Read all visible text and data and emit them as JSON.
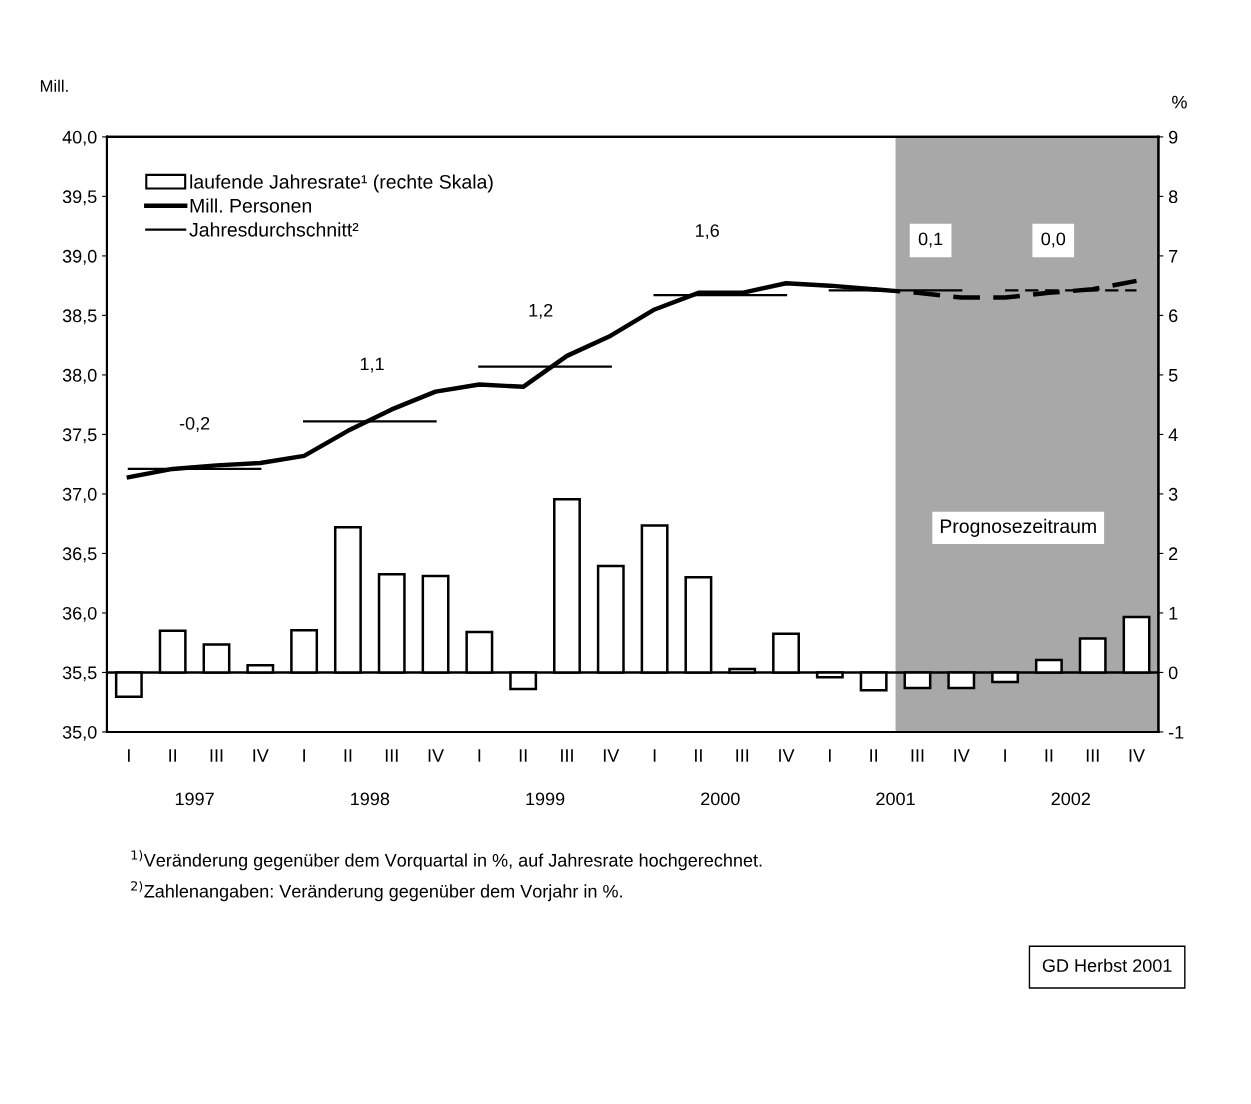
{
  "chart_data": {
    "type": "bar",
    "categories": [
      "I",
      "II",
      "III",
      "IV",
      "I",
      "II",
      "III",
      "IV",
      "I",
      "II",
      "III",
      "IV",
      "I",
      "II",
      "III",
      "IV",
      "I",
      "II",
      "III",
      "IV",
      "I",
      "II",
      "III",
      "IV"
    ],
    "ylabel": "Mill.",
    "y2label": "%",
    "ylim": [
      35.0,
      40.0
    ],
    "yticks": [
      {
        "value": 35.0,
        "label": "35,0"
      },
      {
        "value": 35.5,
        "label": "35,5"
      },
      {
        "value": 36.0,
        "label": "36,0"
      },
      {
        "value": 36.5,
        "label": "36,5"
      },
      {
        "value": 37.0,
        "label": "37,0"
      },
      {
        "value": 37.5,
        "label": "37,5"
      },
      {
        "value": 38.0,
        "label": "38,0"
      },
      {
        "value": 38.5,
        "label": "38,5"
      },
      {
        "value": 39.0,
        "label": "39,0"
      },
      {
        "value": 39.5,
        "label": "39,5"
      },
      {
        "value": 40.0,
        "label": "40,0"
      }
    ],
    "y2lim": [
      -1,
      9
    ],
    "y2ticks": [
      -1,
      0,
      1,
      2,
      3,
      4,
      5,
      6,
      7,
      8,
      9
    ],
    "series": [
      {
        "name": "laufende Jahresrate¹ (rechte Skala)",
        "axis": "y2",
        "color": "#ffffff",
        "values": [
          -0.41,
          0.7,
          0.47,
          0.12,
          0.71,
          2.44,
          1.65,
          1.62,
          0.68,
          -0.28,
          2.91,
          1.79,
          2.47,
          1.6,
          0.06,
          0.65,
          -0.08,
          -0.3,
          -0.26,
          -0.26,
          -0.16,
          0.21,
          0.57,
          0.93
        ]
      },
      {
        "name": "Mill. Personen",
        "type": "line",
        "color": "#000000",
        "line_style": "solid",
        "values": [
          37.14,
          37.21,
          37.24,
          37.26,
          37.32,
          37.53,
          37.71,
          37.86,
          37.92,
          37.9,
          38.16,
          38.33,
          38.55,
          38.69,
          38.69,
          38.77,
          38.75,
          38.72,
          null,
          null,
          null,
          null,
          null,
          null
        ]
      },
      {
        "type": "line",
        "color": "#000000",
        "line_style": "dashed",
        "values": [
          null,
          null,
          null,
          null,
          null,
          null,
          null,
          null,
          null,
          null,
          null,
          null,
          null,
          null,
          null,
          null,
          null,
          38.72,
          38.69,
          38.65,
          38.65,
          38.69,
          38.72,
          38.79
        ]
      },
      {
        "name": "Jahresdurchschnitt²",
        "type": "line",
        "color": "#000000",
        "line_style": "solid",
        "values": [
          37.21,
          37.21,
          37.21,
          37.21,
          null,
          null,
          null,
          null,
          null,
          null,
          null,
          null,
          null,
          null,
          null,
          null,
          null,
          null,
          null,
          null,
          null,
          null,
          null,
          null
        ]
      },
      {
        "type": "line",
        "color": "#000000",
        "line_style": "solid",
        "values": [
          null,
          null,
          null,
          null,
          37.61,
          37.61,
          37.61,
          37.61,
          null,
          null,
          null,
          null,
          null,
          null,
          null,
          null,
          null,
          null,
          null,
          null,
          null,
          null,
          null,
          null
        ]
      },
      {
        "type": "line",
        "color": "#000000",
        "line_style": "solid",
        "values": [
          null,
          null,
          null,
          null,
          null,
          null,
          null,
          null,
          38.07,
          38.07,
          38.07,
          38.07,
          null,
          null,
          null,
          null,
          null,
          null,
          null,
          null,
          null,
          null,
          null,
          null
        ]
      },
      {
        "type": "line",
        "color": "#000000",
        "line_style": "solid",
        "values": [
          null,
          null,
          null,
          null,
          null,
          null,
          null,
          null,
          null,
          null,
          null,
          null,
          38.67,
          38.67,
          38.67,
          38.67,
          null,
          null,
          null,
          null,
          null,
          null,
          null,
          null
        ]
      },
      {
        "type": "line",
        "color": "#000000",
        "line_style": "solid",
        "values": [
          null,
          null,
          null,
          null,
          null,
          null,
          null,
          null,
          null,
          null,
          null,
          null,
          null,
          null,
          null,
          null,
          38.71,
          38.71,
          38.71,
          38.71,
          null,
          null,
          null,
          null
        ]
      },
      {
        "type": "line",
        "color": "#000000",
        "line_style": "dashed",
        "values": [
          null,
          null,
          null,
          null,
          null,
          null,
          null,
          null,
          null,
          null,
          null,
          null,
          null,
          null,
          null,
          null,
          null,
          null,
          null,
          null,
          38.71,
          38.71,
          38.71,
          38.71
        ]
      }
    ],
    "legend": "top left",
    "grid": false,
    "annotations": [
      "1997",
      "1998",
      "1999",
      "2000",
      "2001",
      "2002",
      "-0,2",
      "1,1",
      "1,2",
      "1,6",
      "0,1",
      "0,0",
      "$^{1)}$Veränderung gegenüber dem Vorquartal in %, auf Jahresrate hochgerechnet.",
      "$^{2)}$Zahlenangaben: Veränderung gegenüber dem Vorjahr in %.",
      "GD Herbst 2001",
      "Prognosezeitraum"
    ]
  }
}
